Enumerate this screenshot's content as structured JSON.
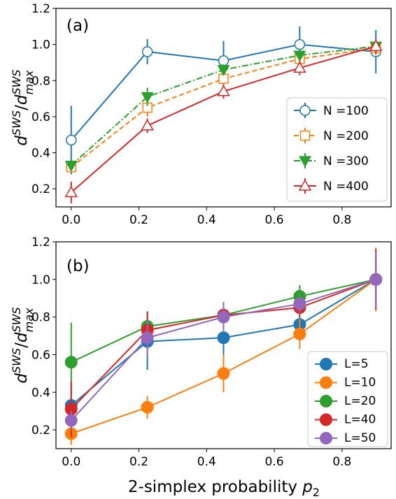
{
  "chart_data": [
    {
      "panel": "(a)",
      "type": "line",
      "ylabel": "d^SWS/d^SWS_max",
      "ylabel_parts": {
        "d": "d",
        "sup1": "SWS",
        "slash": "/",
        "sup2": "SWS",
        "sub2": "max"
      },
      "xlim": [
        -0.045,
        0.945
      ],
      "ylim": [
        0.1,
        1.2
      ],
      "xticks": [
        "0.0",
        "0.2",
        "0.4",
        "0.6",
        "0.8"
      ],
      "yticks": [
        "0.2",
        "0.4",
        "0.6",
        "0.8",
        "1.0",
        "1.2"
      ],
      "legend_position": "center-right",
      "x": [
        0.0,
        0.225,
        0.45,
        0.675,
        0.9
      ],
      "series": [
        {
          "name": "N =100",
          "color": "#1f77b4",
          "marker": "circle",
          "linestyle": "solid",
          "values": [
            0.47,
            0.96,
            0.91,
            1.0,
            0.96
          ],
          "errors": [
            0.19,
            0.07,
            0.11,
            0.1,
            0.12
          ]
        },
        {
          "name": "N =200",
          "color": "#ff7f0e",
          "marker": "square",
          "linestyle": "dashed",
          "values": [
            0.32,
            0.65,
            0.81,
            0.92,
            0.98
          ],
          "errors": [
            0.03,
            0.05,
            0.05,
            0.04,
            0.04
          ]
        },
        {
          "name": "N =300",
          "color": "#2ca02c",
          "marker": "triangle-down",
          "linestyle": "dashdot",
          "values": [
            0.33,
            0.71,
            0.86,
            0.94,
            0.99
          ],
          "errors": [
            0.03,
            0.05,
            0.03,
            0.03,
            0.03
          ]
        },
        {
          "name": "N =400",
          "color": "#d62728",
          "marker": "triangle-up",
          "linestyle": "solid",
          "values": [
            0.18,
            0.55,
            0.74,
            0.87,
            0.99
          ],
          "errors": [
            0.06,
            0.04,
            0.04,
            0.04,
            0.04
          ]
        }
      ]
    },
    {
      "panel": "(b)",
      "type": "line",
      "xlabel": "2-simplex probability p_2",
      "xlabel_parts": {
        "text": "2-simplex probability ",
        "p": "p",
        "sub": "2"
      },
      "ylabel": "d^SWS/d^SWS_max",
      "ylabel_parts": {
        "d": "d",
        "sup1": "SWS",
        "slash": "/",
        "sup2": "SWS",
        "sub2": "max"
      },
      "xlim": [
        -0.045,
        0.945
      ],
      "ylim": [
        0.1,
        1.2
      ],
      "xticks": [
        "0.0",
        "0.2",
        "0.4",
        "0.6",
        "0.8"
      ],
      "yticks": [
        "0.2",
        "0.4",
        "0.6",
        "0.8",
        "1.0",
        "1.2"
      ],
      "legend_position": "lower-right",
      "x": [
        0.0,
        0.225,
        0.45,
        0.675,
        0.9
      ],
      "series": [
        {
          "name": "L=5",
          "color": "#1f77b4",
          "marker": "filled-circle",
          "values": [
            0.33,
            0.67,
            0.69,
            0.76,
            1.0
          ],
          "errors": [
            0.1,
            0.15,
            0.1,
            0.05,
            0.15
          ]
        },
        {
          "name": "L=10",
          "color": "#ff7f0e",
          "marker": "filled-circle",
          "values": [
            0.18,
            0.32,
            0.5,
            0.71,
            1.0
          ],
          "errors": [
            0.06,
            0.06,
            0.1,
            0.08,
            0.17
          ]
        },
        {
          "name": "L=20",
          "color": "#2ca02c",
          "marker": "filled-circle",
          "values": [
            0.56,
            0.75,
            0.81,
            0.91,
            1.0
          ],
          "errors": [
            0.21,
            0.08,
            0.06,
            0.06,
            0.16
          ]
        },
        {
          "name": "L=40",
          "color": "#d62728",
          "marker": "filled-circle",
          "values": [
            0.31,
            0.73,
            0.81,
            0.85,
            1.0
          ],
          "errors": [
            0.15,
            0.1,
            0.07,
            0.05,
            0.16
          ]
        },
        {
          "name": "L=50",
          "color": "#9467bd",
          "marker": "filled-circle",
          "values": [
            0.25,
            0.69,
            0.8,
            0.87,
            1.0
          ],
          "errors": [
            0.05,
            0.09,
            0.08,
            0.05,
            0.15
          ]
        }
      ]
    }
  ]
}
